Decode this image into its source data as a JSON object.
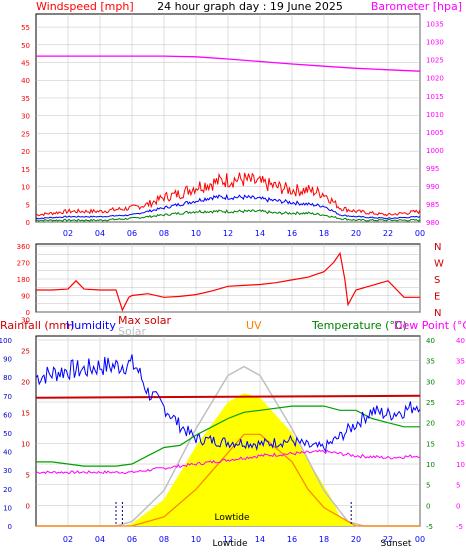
{
  "header": {
    "left_title": "Windspeed [mph]",
    "center_title": "24 hour graph day : 19 June 2025",
    "right_title": "Barometer [hpa]"
  },
  "colors": {
    "windspeed": "#ff0000",
    "gust_blue": "#0000ff",
    "wind_green": "#008000",
    "barometer": "#ff00ff",
    "direction": "#ff0000",
    "rain": "#cc0000",
    "humidity": "#0000ff",
    "max_solar": "#c0c0c0",
    "solar": "#ffff00",
    "uv": "#ff8000",
    "temperature": "#00a000",
    "dewpoint": "#ff00ff",
    "grid": "#c0c0c0",
    "axis_text_left": "#ff0000",
    "axis_text_right": "#ff00ff",
    "x_axis_text": "#0000ff"
  },
  "x_tick_labels": [
    "02",
    "04",
    "06",
    "08",
    "10",
    "12",
    "14",
    "16",
    "18",
    "20",
    "22",
    "00"
  ],
  "chart_data": [
    {
      "type": "line",
      "title": "24 hour graph day : 19 June 2025",
      "ylabel": "Windspeed [mph]",
      "y2label": "Barometer [hpa]",
      "x_range": [
        0,
        24
      ],
      "ylim": [
        0,
        57
      ],
      "y2lim": [
        980,
        1036
      ],
      "y_ticks": [
        0,
        5,
        10,
        15,
        20,
        25,
        30,
        35,
        40,
        45,
        50,
        55
      ],
      "y2_ticks": [
        980,
        985,
        990,
        995,
        1000,
        1005,
        1010,
        1015,
        1020,
        1025,
        1030,
        1035
      ],
      "grid": true,
      "series": [
        {
          "name": "Windspeed",
          "x": [
            0,
            2,
            4,
            6,
            7,
            8,
            9,
            10,
            11,
            12,
            13,
            14,
            15,
            16,
            17,
            18,
            19,
            20,
            22,
            24
          ],
          "values": [
            2,
            3,
            3,
            4,
            5,
            7,
            8,
            10,
            11,
            12,
            12,
            11,
            10,
            9,
            9,
            8,
            4,
            3,
            2,
            3
          ]
        },
        {
          "name": "Average",
          "x": [
            0,
            2,
            4,
            6,
            7,
            8,
            9,
            10,
            11,
            12,
            13,
            14,
            15,
            16,
            17,
            18,
            19,
            20,
            22,
            24
          ],
          "values": [
            1,
            1.5,
            1.5,
            2,
            3,
            4,
            5,
            6,
            7,
            7,
            7,
            6.5,
            6,
            5.5,
            5,
            4.5,
            2,
            1.5,
            1,
            1.5
          ]
        },
        {
          "name": "Direction-speed",
          "x": [
            0,
            2,
            4,
            6,
            7,
            8,
            9,
            10,
            11,
            12,
            13,
            14,
            15,
            16,
            17,
            18,
            19,
            20,
            22,
            24
          ],
          "values": [
            0.5,
            0.5,
            0.5,
            1,
            1.5,
            2,
            2.5,
            3,
            3,
            3,
            3,
            3,
            2.5,
            2.5,
            2.5,
            2,
            1,
            0.5,
            0.5,
            0.5
          ]
        },
        {
          "name": "Barometer",
          "x": [
            0,
            2,
            4,
            6,
            8,
            10,
            12,
            14,
            16,
            18,
            20,
            22,
            24
          ],
          "values": [
            1026,
            1026,
            1026,
            1026,
            1026,
            1025.8,
            1025.2,
            1024.5,
            1023.8,
            1023.2,
            1022.6,
            1022.2,
            1021.8
          ]
        }
      ]
    },
    {
      "type": "line",
      "ylabel": "Wind direction",
      "x_range": [
        0,
        24
      ],
      "ylim": [
        0,
        360
      ],
      "y_ticks": [
        0,
        45,
        90,
        135,
        180,
        225,
        270,
        315,
        360
      ],
      "right_labels": [
        "N",
        "W",
        "S",
        "E",
        "N"
      ],
      "grid": true,
      "series": [
        {
          "name": "Direction",
          "x": [
            0,
            1,
            2,
            2.5,
            3,
            4,
            5,
            5.4,
            5.8,
            6,
            7,
            8,
            9,
            10,
            11,
            12,
            13,
            14,
            15,
            16,
            17,
            18,
            18.6,
            19,
            19.3,
            19.5,
            20,
            21,
            22,
            23,
            24
          ],
          "values": [
            120,
            120,
            125,
            170,
            125,
            120,
            120,
            10,
            80,
            90,
            100,
            80,
            85,
            95,
            115,
            140,
            145,
            150,
            160,
            175,
            190,
            220,
            270,
            320,
            180,
            40,
            120,
            145,
            170,
            80,
            80
          ]
        }
      ]
    },
    {
      "type": "line",
      "x_range": [
        0,
        24
      ],
      "series_labels": [
        "Rainfall (mm)",
        "Humidity",
        "Max solar",
        "Solar",
        "UV",
        "Temperature (°C)",
        "Dew Point (°C)"
      ],
      "left_axis_rain": [
        0,
        10,
        20,
        30,
        40,
        50,
        60,
        70,
        80,
        90,
        100
      ],
      "left_axis_humidity": [
        0,
        5,
        10,
        15,
        20,
        25,
        30
      ],
      "right_axis_temperature": [
        -5,
        0,
        5,
        10,
        15,
        20,
        25,
        30,
        35,
        40
      ],
      "right_axis_dewpoint": [
        -5,
        0,
        5,
        10,
        15,
        20,
        25,
        30,
        35,
        40
      ],
      "ylim_temperature": [
        -5,
        40
      ],
      "grid": true,
      "bottom_labels": {
        "lowtide_1": "Lowtide",
        "lowtide_2": "Lowtide",
        "sunset": "Sunset"
      },
      "series": [
        {
          "name": "Humidity",
          "x": [
            0,
            1,
            2,
            3,
            4,
            5,
            5.5,
            6,
            6.3,
            7,
            8,
            9,
            10,
            11,
            12,
            13,
            14,
            15,
            16,
            17,
            18,
            19,
            20,
            21,
            22,
            23,
            24
          ],
          "values": [
            80,
            82,
            84,
            84,
            86,
            86,
            87,
            87,
            85,
            72,
            64,
            54,
            47,
            46,
            45,
            45,
            44,
            45,
            46,
            43,
            42,
            48,
            55,
            62,
            60,
            62,
            66
          ]
        },
        {
          "name": "Temperature",
          "x": [
            0,
            1,
            2,
            3,
            4,
            5,
            6,
            7,
            8,
            9,
            10,
            11,
            12,
            13,
            14,
            15,
            16,
            17,
            18,
            19,
            20,
            21,
            22,
            23,
            24
          ],
          "values": [
            10.5,
            10.5,
            10,
            9.5,
            9.5,
            9.5,
            10,
            12,
            14,
            14.5,
            17,
            19,
            21,
            22.5,
            23,
            23.5,
            24,
            24,
            24,
            23,
            23,
            21,
            20,
            19,
            19
          ]
        },
        {
          "name": "Dew Point",
          "x": [
            0,
            2,
            4,
            6,
            7,
            8,
            10,
            12,
            14,
            16,
            18,
            20,
            22,
            24
          ],
          "values": [
            8,
            8,
            8,
            8,
            8.5,
            9,
            10,
            11,
            12,
            12.5,
            13,
            12,
            11.5,
            12
          ]
        },
        {
          "name": "Max solar",
          "x": [
            0,
            5,
            6,
            8,
            10,
            12,
            13,
            14,
            16,
            18,
            19.5,
            20.5,
            24
          ],
          "values": [
            0,
            0,
            10,
            80,
            220,
            340,
            360,
            340,
            220,
            80,
            10,
            0,
            0
          ]
        },
        {
          "name": "Solar",
          "x": [
            0,
            5.5,
            6,
            8,
            10,
            12,
            13,
            14,
            16,
            18,
            18.5,
            19,
            20,
            24
          ],
          "values": [
            0,
            0,
            5,
            60,
            180,
            280,
            300,
            290,
            210,
            90,
            60,
            20,
            0,
            0
          ]
        },
        {
          "name": "UV",
          "x": [
            0,
            6,
            8,
            10,
            12,
            13,
            14,
            16,
            17,
            18,
            20,
            24
          ],
          "values": [
            0,
            0,
            0.5,
            2,
            4,
            5,
            5,
            3.5,
            2,
            1,
            0,
            0
          ]
        },
        {
          "name": "Rainfall",
          "x": [
            0,
            24
          ],
          "values": [
            69,
            70
          ]
        }
      ]
    }
  ]
}
